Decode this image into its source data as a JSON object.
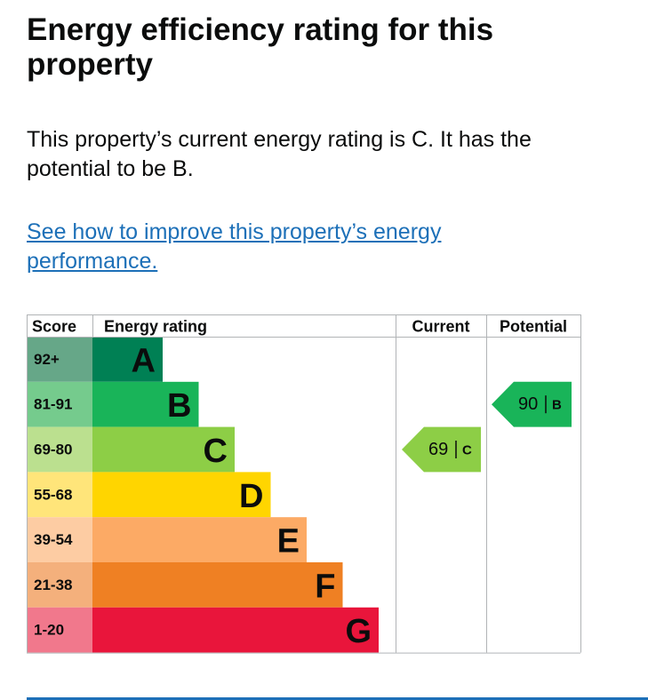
{
  "header": {
    "title": "Energy efficiency rating for this property"
  },
  "summary": "This property’s current energy rating is C. It has the potential to be B.",
  "link": "See how to improve this property’s energy performance.",
  "table": {
    "columns": [
      "Score",
      "Energy rating",
      "Current",
      "Potential"
    ],
    "rows": [
      {
        "score": "92+",
        "band": "A",
        "color": "#008054",
        "score_color": "#66a788"
      },
      {
        "score": "81-91",
        "band": "B",
        "color": "#19b459",
        "score_color": "#75cb8d"
      },
      {
        "score": "69-80",
        "band": "C",
        "color": "#8dce46",
        "score_color": "#bbe08f"
      },
      {
        "score": "55-68",
        "band": "D",
        "color": "#ffd500",
        "score_color": "#ffe57a"
      },
      {
        "score": "39-54",
        "band": "E",
        "color": "#fcaa65",
        "score_color": "#fdcca3"
      },
      {
        "score": "21-38",
        "band": "F",
        "color": "#ef8023",
        "score_color": "#f4b07c"
      },
      {
        "score": "1-20",
        "band": "G",
        "color": "#e9153b",
        "score_color": "#f1788c"
      }
    ],
    "current": {
      "value": 69,
      "band": "C"
    },
    "potential": {
      "value": 90,
      "band": "B"
    }
  }
}
